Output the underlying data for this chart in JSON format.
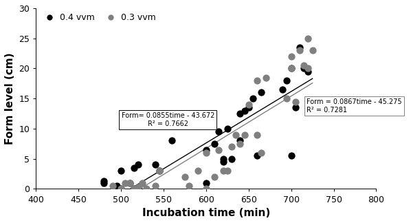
{
  "title": "",
  "xlabel": "Incubation time (min)",
  "ylabel": "Form level (cm)",
  "xlim": [
    400,
    800
  ],
  "ylim": [
    0,
    30
  ],
  "xticks": [
    400,
    450,
    500,
    550,
    600,
    650,
    700,
    750,
    800
  ],
  "yticks": [
    0,
    5,
    10,
    15,
    20,
    25,
    30
  ],
  "black_x": [
    480,
    480,
    495,
    500,
    500,
    510,
    515,
    515,
    520,
    520,
    540,
    545,
    560,
    600,
    600,
    610,
    615,
    620,
    620,
    625,
    630,
    640,
    640,
    645,
    650,
    655,
    660,
    665,
    690,
    695,
    700,
    700,
    705,
    710,
    715,
    720
  ],
  "black_y": [
    1.0,
    1.3,
    0.5,
    0.0,
    3.0,
    1.0,
    0.0,
    3.5,
    0.0,
    4.0,
    4.0,
    3.0,
    8.0,
    1.0,
    6.5,
    7.5,
    9.5,
    4.5,
    5.0,
    10.0,
    5.0,
    8.0,
    12.5,
    13.0,
    13.5,
    15.0,
    5.5,
    16.0,
    16.5,
    18.0,
    5.5,
    20.0,
    13.5,
    23.5,
    20.0,
    19.5
  ],
  "gray_x": [
    490,
    500,
    505,
    510,
    515,
    520,
    525,
    530,
    540,
    545,
    575,
    580,
    590,
    600,
    600,
    610,
    615,
    620,
    625,
    630,
    635,
    640,
    645,
    650,
    660,
    660,
    665,
    670,
    695,
    700,
    700,
    705,
    710,
    715,
    720,
    720,
    725
  ],
  "gray_y": [
    0.5,
    0.0,
    1.0,
    1.0,
    0.0,
    0.3,
    1.0,
    0.0,
    0.5,
    3.0,
    2.0,
    0.5,
    3.0,
    0.0,
    6.0,
    2.0,
    6.5,
    3.0,
    3.0,
    7.0,
    9.0,
    7.5,
    9.0,
    14.0,
    9.0,
    18.0,
    6.0,
    18.5,
    15.0,
    20.0,
    22.0,
    14.5,
    23.0,
    20.5,
    20.0,
    25.0,
    23.0
  ],
  "black_eq": "Form= 0.0855time - 43.672",
  "black_r2": "R² = 0.7662",
  "black_slope": 0.0855,
  "black_intercept": -43.672,
  "gray_eq": "Form = 0.0867time - 45.275",
  "gray_r2": "R² = 0.7281",
  "gray_slope": 0.0867,
  "gray_intercept": -45.275,
  "legend_black": "0.4 vvm",
  "legend_gray": "0.3 vvm",
  "black_color": "#000000",
  "gray_color": "#808080",
  "marker_size": 55,
  "font_size": 7,
  "axis_label_fontsize": 11,
  "background_color": "#ffffff",
  "line_x_start": 510,
  "line_x_end": 725,
  "black_ann_x": 555,
  "black_ann_y": 11.5,
  "gray_ann_x": 718,
  "gray_ann_y": 13.8
}
